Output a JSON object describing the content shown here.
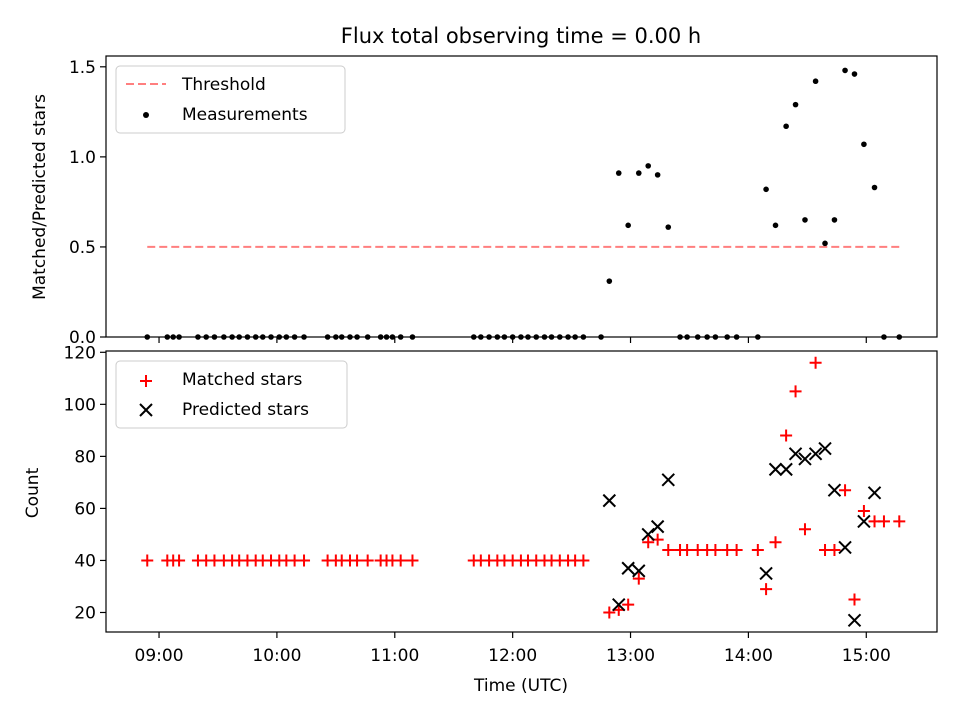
{
  "chart_data": [
    {
      "type": "scatter",
      "title": "Flux total observing time = 0.00 h",
      "xlabel": "",
      "ylabel": "Matched/Predicted stars",
      "xlim": [
        8.55,
        15.6
      ],
      "ylim": [
        0,
        1.56
      ],
      "yticks": [
        0.0,
        0.5,
        1.0,
        1.5
      ],
      "ytick_labels": [
        "0.0",
        "0.5",
        "1.0",
        "1.5"
      ],
      "legend_position": "top-left",
      "threshold": {
        "name": "Threshold",
        "value": 0.5,
        "x_range": [
          8.9,
          15.3
        ],
        "color": "#ff7f7f"
      },
      "series": [
        {
          "name": "Measurements",
          "color": "#000000",
          "x": [
            8.9,
            9.07,
            9.12,
            9.17,
            9.33,
            9.4,
            9.47,
            9.55,
            9.62,
            9.68,
            9.75,
            9.82,
            9.88,
            9.95,
            10.02,
            10.08,
            10.15,
            10.23,
            10.43,
            10.5,
            10.55,
            10.62,
            10.68,
            10.77,
            10.88,
            10.93,
            10.98,
            11.05,
            11.15,
            11.67,
            11.73,
            11.8,
            11.87,
            11.93,
            12.0,
            12.07,
            12.13,
            12.2,
            12.27,
            12.33,
            12.4,
            12.47,
            12.53,
            12.6,
            12.75,
            12.82,
            12.9,
            12.98,
            13.07,
            13.15,
            13.23,
            13.32,
            13.42,
            13.48,
            13.57,
            13.65,
            13.72,
            13.82,
            13.9,
            14.08,
            14.15,
            14.23,
            14.32,
            14.4,
            14.48,
            14.57,
            14.65,
            14.73,
            14.82,
            14.9,
            14.98,
            15.07,
            15.15,
            15.28
          ],
          "y": [
            0,
            0,
            0,
            0,
            0,
            0,
            0,
            0,
            0,
            0,
            0,
            0,
            0,
            0,
            0,
            0,
            0,
            0,
            0,
            0,
            0,
            0,
            0,
            0,
            0,
            0,
            0,
            0,
            0,
            0,
            0,
            0,
            0,
            0,
            0,
            0,
            0,
            0,
            0,
            0,
            0,
            0,
            0,
            0,
            0,
            0.31,
            0.91,
            0.62,
            0.91,
            0.95,
            0.9,
            0.61,
            0,
            0,
            0,
            0,
            0,
            0,
            0,
            0,
            0.82,
            0.62,
            1.17,
            1.29,
            0.65,
            1.42,
            0.52,
            0.65,
            1.48,
            1.46,
            1.07,
            0.83,
            0,
            0
          ]
        }
      ]
    },
    {
      "type": "scatter",
      "title": "",
      "xlabel": "Time (UTC)",
      "ylabel": "Count",
      "xlim": [
        8.55,
        15.6
      ],
      "ylim": [
        12.5,
        120.5
      ],
      "yticks": [
        20,
        40,
        60,
        80,
        100,
        120
      ],
      "ytick_labels": [
        "20",
        "40",
        "60",
        "80",
        "100",
        "120"
      ],
      "xticks": [
        9,
        10,
        11,
        12,
        13,
        14,
        15
      ],
      "xtick_labels": [
        "09:00",
        "10:00",
        "11:00",
        "12:00",
        "13:00",
        "14:00",
        "15:00"
      ],
      "legend_position": "top-left",
      "series": [
        {
          "name": "Matched stars",
          "marker": "plus",
          "color": "#ff0000",
          "x": [
            8.9,
            9.07,
            9.12,
            9.17,
            9.33,
            9.4,
            9.47,
            9.55,
            9.62,
            9.68,
            9.75,
            9.82,
            9.88,
            9.95,
            10.02,
            10.08,
            10.15,
            10.23,
            10.43,
            10.5,
            10.55,
            10.62,
            10.68,
            10.77,
            10.88,
            10.93,
            10.98,
            11.05,
            11.15,
            11.67,
            11.73,
            11.8,
            11.87,
            11.93,
            12.0,
            12.07,
            12.13,
            12.2,
            12.27,
            12.33,
            12.4,
            12.47,
            12.53,
            12.6,
            12.82,
            12.9,
            12.98,
            13.07,
            13.15,
            13.23,
            13.32,
            13.42,
            13.48,
            13.57,
            13.65,
            13.72,
            13.82,
            13.9,
            14.08,
            14.15,
            14.23,
            14.32,
            14.4,
            14.48,
            14.57,
            14.65,
            14.73,
            14.82,
            14.9,
            14.98,
            15.07,
            15.15,
            15.28
          ],
          "y": [
            40,
            40,
            40,
            40,
            40,
            40,
            40,
            40,
            40,
            40,
            40,
            40,
            40,
            40,
            40,
            40,
            40,
            40,
            40,
            40,
            40,
            40,
            40,
            40,
            40,
            40,
            40,
            40,
            40,
            40,
            40,
            40,
            40,
            40,
            40,
            40,
            40,
            40,
            40,
            40,
            40,
            40,
            40,
            40,
            20,
            21,
            23,
            33,
            47,
            48,
            44,
            44,
            44,
            44,
            44,
            44,
            44,
            44,
            44,
            29,
            47,
            88,
            105,
            52,
            116,
            44,
            44,
            67,
            25,
            59,
            55,
            55,
            55
          ]
        },
        {
          "name": "Predicted stars",
          "marker": "x",
          "color": "#000000",
          "x": [
            12.82,
            12.9,
            12.98,
            13.07,
            13.15,
            13.23,
            13.32,
            14.15,
            14.23,
            14.32,
            14.4,
            14.48,
            14.57,
            14.65,
            14.73,
            14.82,
            14.9,
            14.98,
            15.07
          ],
          "y": [
            63,
            23,
            37,
            36,
            50,
            53,
            71,
            35,
            75,
            75,
            81,
            79,
            81,
            83,
            67,
            45,
            17,
            55,
            66
          ]
        }
      ]
    }
  ]
}
